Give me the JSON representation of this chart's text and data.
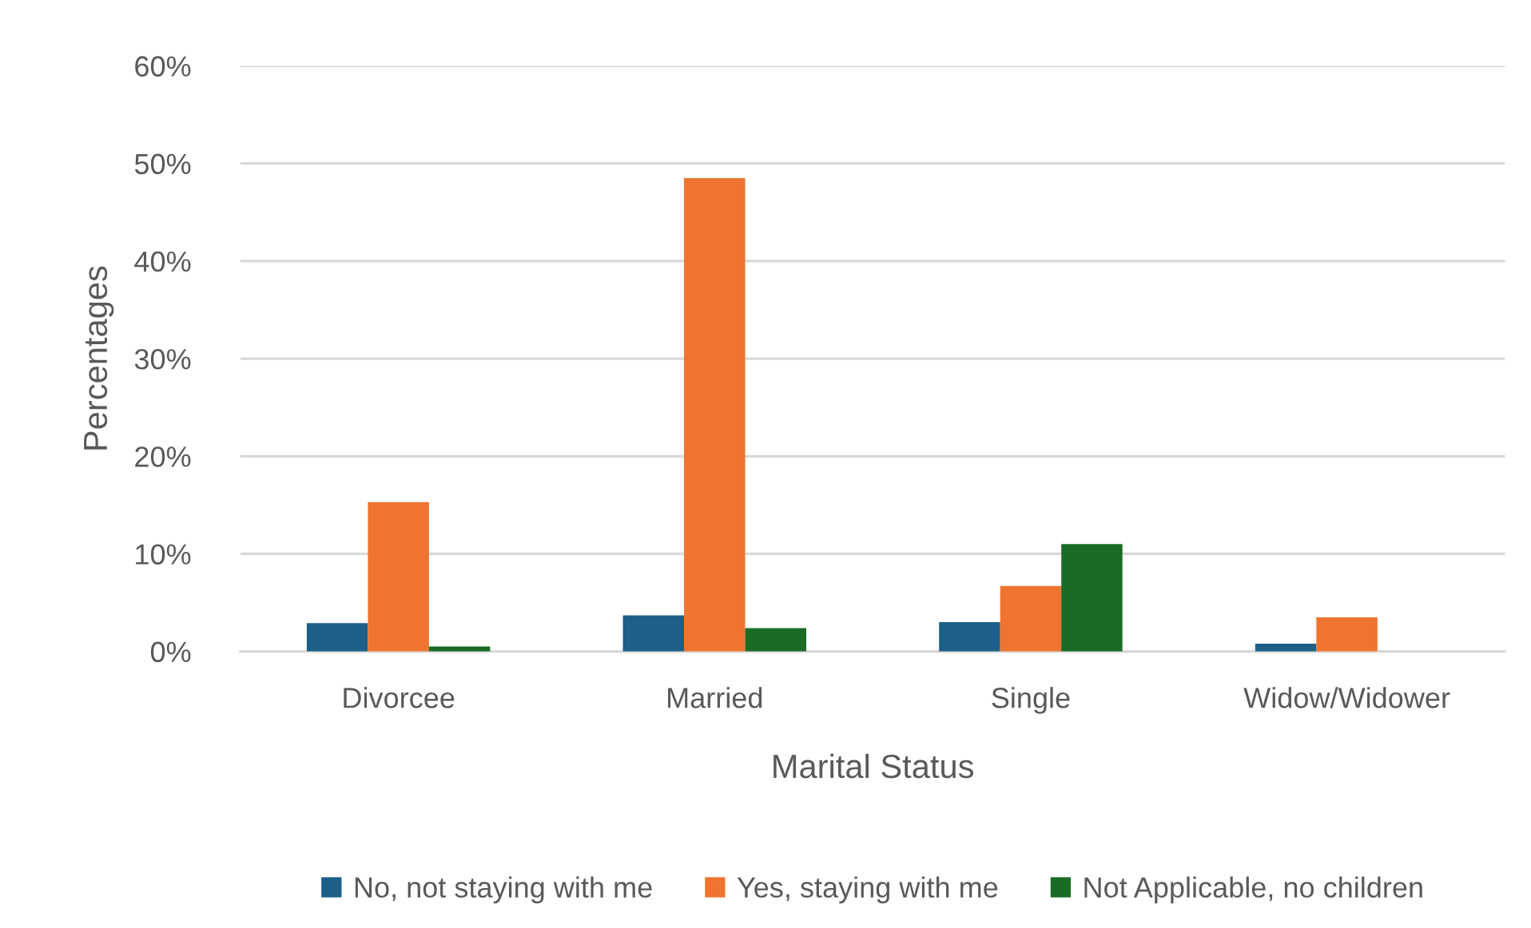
{
  "chart_data": {
    "type": "bar",
    "xlabel": "Marital Status",
    "ylabel": "Percentages",
    "categories": [
      "Divorcee",
      "Married",
      "Single",
      "Widow/Widower"
    ],
    "series": [
      {
        "name": "No, not staying with me",
        "color": "#1c5f88",
        "values": [
          2.9,
          3.7,
          3.0,
          0.8
        ]
      },
      {
        "name": "Yes, staying with me",
        "color": "#ee7430",
        "values": [
          15.3,
          48.5,
          6.7,
          3.5
        ]
      },
      {
        "name": "Not Applicable, no children",
        "color": "#1b6b24",
        "values": [
          0.5,
          2.4,
          11.0,
          null
        ]
      }
    ],
    "ylim": [
      0,
      60
    ],
    "yticks": [
      {
        "value": 0,
        "label": "0%"
      },
      {
        "value": 10,
        "label": "10%"
      },
      {
        "value": 20,
        "label": "20%"
      },
      {
        "value": 30,
        "label": "30%"
      },
      {
        "value": 40,
        "label": "40%"
      },
      {
        "value": 50,
        "label": "50%"
      },
      {
        "value": 60,
        "label": "60%"
      }
    ],
    "grid": "y",
    "legend": "bottom"
  }
}
